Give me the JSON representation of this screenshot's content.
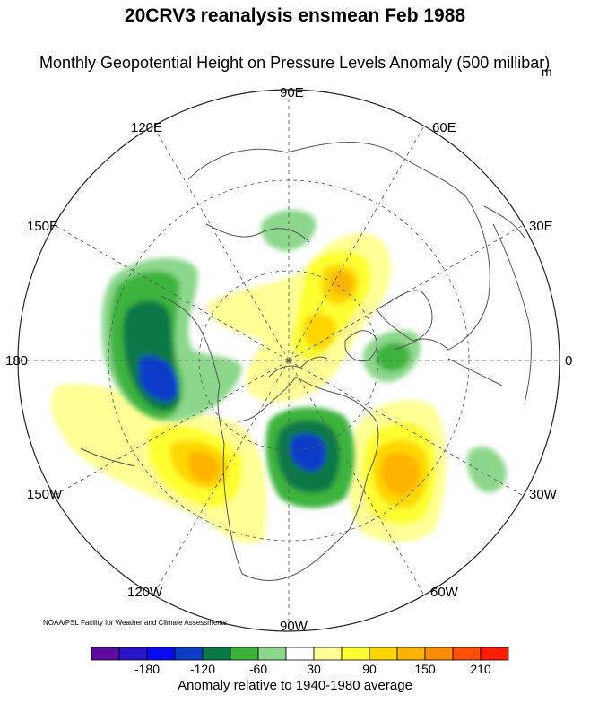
{
  "title": "20CRV3 reanalysis ensmean Feb 1988",
  "subtitle": "Monthly Geopotential Height on Pressure Levels Anomaly (500 millibar)",
  "units": "m",
  "longitude_labels": [
    "90E",
    "60E",
    "30E",
    "0",
    "30W",
    "60W",
    "90W",
    "120W",
    "150W",
    "180",
    "150E",
    "120E"
  ],
  "credit": "NOAA/PSL Facility for Weather and Climate Assessments",
  "colorbar": {
    "title": "Anomaly relative to 1940-1980 average",
    "tick_labels": [
      "-180",
      "-120",
      "-60",
      "30",
      "90",
      "150",
      "210"
    ],
    "colors": [
      "#5c0aa0",
      "#2a14c8",
      "#0a0af0",
      "#0a3cc8",
      "#0a7846",
      "#3cb43c",
      "#8cd78c",
      "#ffffff",
      "#ffff96",
      "#ffff32",
      "#ffd700",
      "#ffb400",
      "#ff8c00",
      "#ff5000",
      "#ff1e00"
    ]
  },
  "map": {
    "projection": "north polar stereographic",
    "graticule": "dashed",
    "anomaly_features": [
      {
        "region": "North Pacific / Aleutians",
        "sign": "negative",
        "peak_class": "-180"
      },
      {
        "region": "Hudson Bay / Central Canada",
        "sign": "negative",
        "peak_class": "-180"
      },
      {
        "region": "Scandinavia / Barents Sea",
        "sign": "negative",
        "peak_class": "-120"
      },
      {
        "region": "Central Asia",
        "sign": "negative",
        "peak_class": "-60"
      },
      {
        "region": "Eastern Atlantic",
        "sign": "negative",
        "peak_class": "-60"
      },
      {
        "region": "Western North America",
        "sign": "positive",
        "peak_class": "150"
      },
      {
        "region": "Western Atlantic",
        "sign": "positive",
        "peak_class": "150"
      },
      {
        "region": "Eastern Siberia",
        "sign": "positive",
        "peak_class": "150"
      },
      {
        "region": "Arctic Ocean",
        "sign": "positive",
        "peak_class": "150"
      }
    ]
  }
}
